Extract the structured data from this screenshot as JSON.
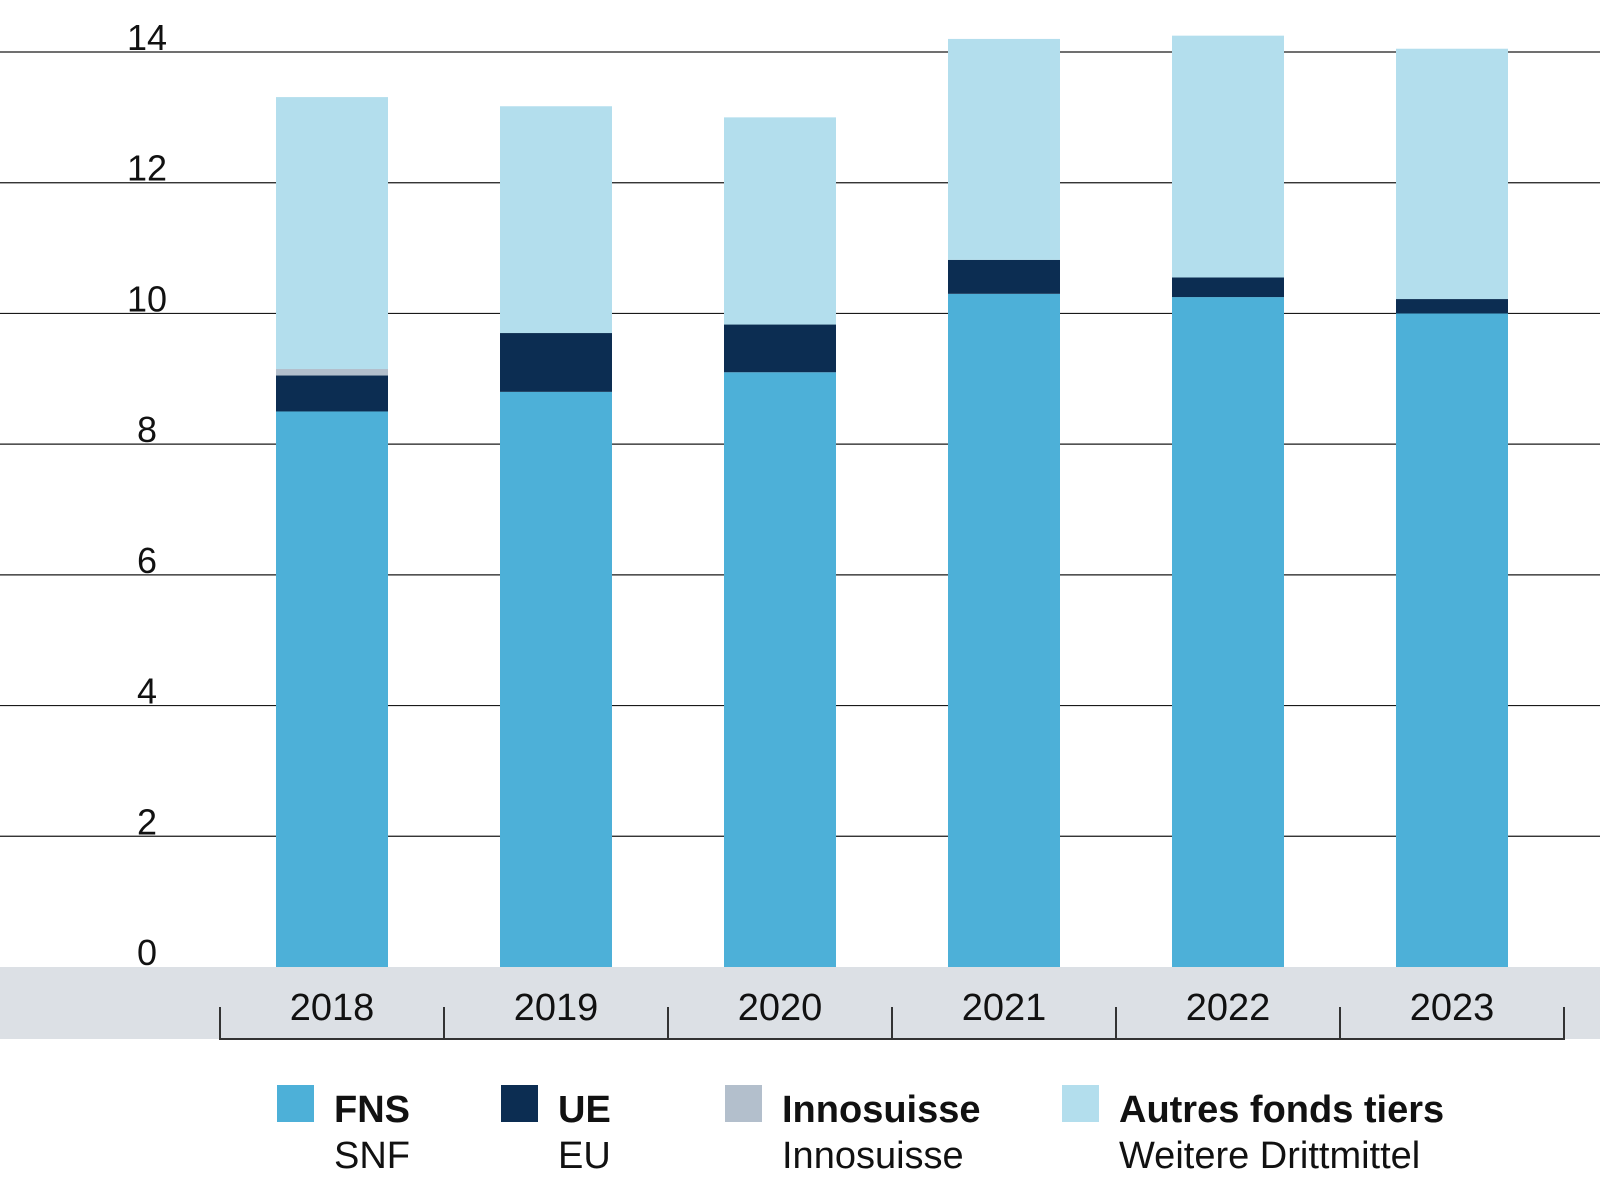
{
  "chart_data": {
    "type": "bar",
    "stacked": true,
    "categories": [
      "2018",
      "2019",
      "2020",
      "2021",
      "2022",
      "2023"
    ],
    "series": [
      {
        "name": "FNS",
        "name_de": "SNF",
        "color": "#4db0d8",
        "values": [
          8.5,
          8.8,
          9.1,
          10.3,
          10.25,
          10.0
        ]
      },
      {
        "name": "UE",
        "name_de": "EU",
        "color": "#0c2d52",
        "values": [
          0.55,
          0.9,
          0.73,
          0.52,
          0.3,
          0.22
        ]
      },
      {
        "name": "Innosuisse",
        "name_de": "Innosuisse",
        "color": "#b3bfcc",
        "values": [
          0.1,
          0.0,
          0.0,
          0.0,
          0.0,
          0.0
        ]
      },
      {
        "name": "Autres fonds tiers",
        "name_de": "Weitere Drittmittel",
        "color": "#b3deed",
        "values": [
          4.16,
          3.47,
          3.17,
          3.38,
          3.7,
          3.83
        ]
      }
    ],
    "yticks": [
      "0",
      "2",
      "4",
      "6",
      "8",
      "10",
      "12",
      "14"
    ],
    "ylim": [
      0,
      14
    ],
    "grid": true,
    "legend_position": "bottom"
  }
}
